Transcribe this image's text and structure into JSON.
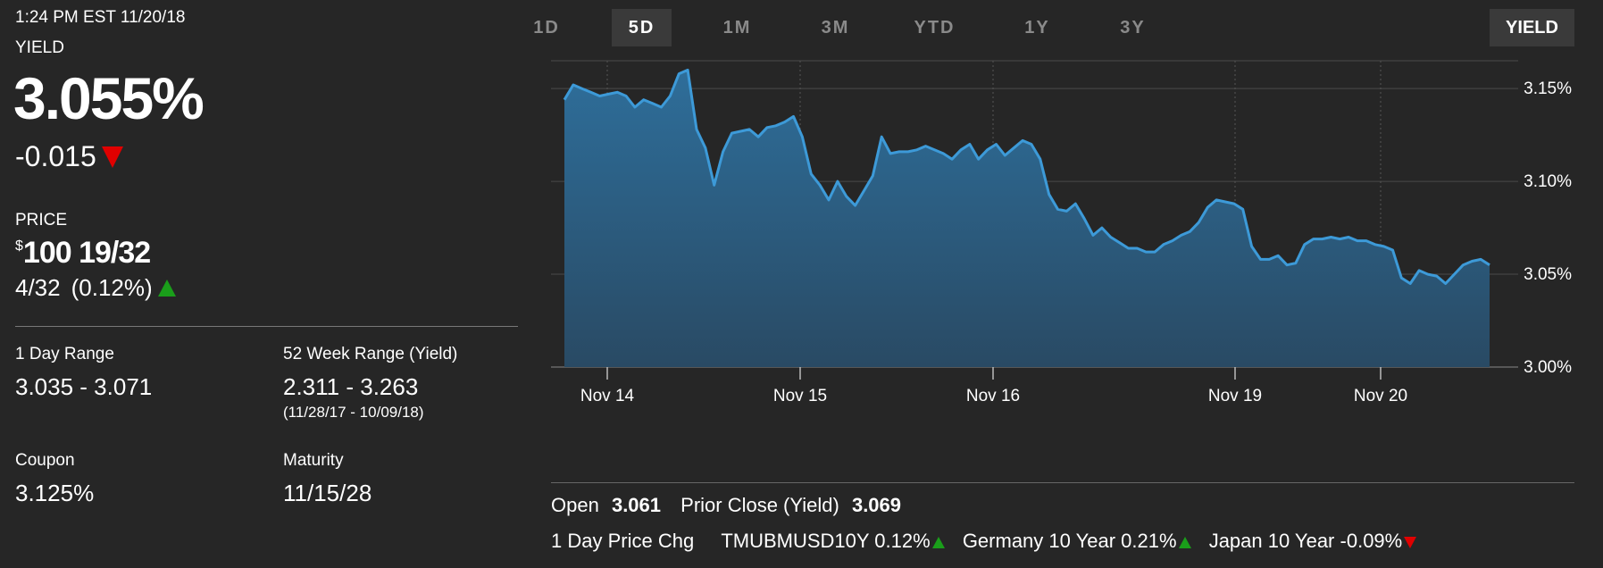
{
  "header": {
    "timestamp": "1:24 PM EST 11/20/18",
    "yield_label": "YIELD",
    "yield_value": "3.055%",
    "yield_change": "-0.015",
    "yield_direction": "down"
  },
  "price": {
    "label": "PRICE",
    "currency": "$",
    "value": "100 19/32",
    "change": "4/32",
    "change_pct": "(0.12%)",
    "direction": "up"
  },
  "stats": {
    "day_range_label": "1 Day Range",
    "day_range_value": "3.035 - 3.071",
    "week52_label": "52 Week Range (Yield)",
    "week52_value": "2.311 - 3.263",
    "week52_dates": "(11/28/17 - 10/09/18)",
    "coupon_label": "Coupon",
    "coupon_value": "3.125%",
    "maturity_label": "Maturity",
    "maturity_value": "11/15/28"
  },
  "tabs": {
    "items": [
      "1D",
      "5D",
      "1M",
      "3M",
      "YTD",
      "1Y",
      "3Y"
    ],
    "active": "5D",
    "yield_button": "YIELD"
  },
  "footer": {
    "open_label": "Open",
    "open_value": "3.061",
    "prior_close_label": "Prior Close (Yield)",
    "prior_close_value": "3.069",
    "day_price_chg_label": "1 Day Price Chg",
    "tickers": [
      {
        "name": "TMUBMUSD10Y",
        "value": "0.12%",
        "direction": "up"
      },
      {
        "name": "Germany 10 Year",
        "value": "0.21%",
        "direction": "up"
      },
      {
        "name": "Japan 10 Year",
        "value": "-0.09%",
        "direction": "down"
      }
    ]
  },
  "colors": {
    "background": "#262626",
    "line": "#3d9ad8",
    "fill_top": "#2e6e9a",
    "fill_bottom": "#294a64",
    "up": "#1a9e1a",
    "down": "#e00000"
  },
  "chart_data": {
    "type": "area",
    "title": "",
    "xlabel": "",
    "ylabel": "",
    "x_ticks": [
      "Nov 14",
      "Nov 15",
      "Nov 16",
      "Nov 19",
      "Nov 20"
    ],
    "y_ticks": [
      "3.00%",
      "3.05%",
      "3.10%",
      "3.15%"
    ],
    "ylim": [
      3.0,
      3.165
    ],
    "grid": true,
    "y_axis_side": "right",
    "series": [
      {
        "values": [
          3.144,
          3.152,
          3.15,
          3.148,
          3.146,
          3.147,
          3.148,
          3.146,
          3.14,
          3.144,
          3.142,
          3.14,
          3.146,
          3.158,
          3.16,
          3.128,
          3.118,
          3.098,
          3.116,
          3.126,
          3.127,
          3.128,
          3.124,
          3.129,
          3.13,
          3.132,
          3.135,
          3.124,
          3.104,
          3.098,
          3.09,
          3.1,
          3.092,
          3.087,
          3.095,
          3.103,
          3.124,
          3.115,
          3.116,
          3.116,
          3.117,
          3.119,
          3.117,
          3.115,
          3.112,
          3.117,
          3.12,
          3.112,
          3.117,
          3.12,
          3.114,
          3.118,
          3.122,
          3.12,
          3.112,
          3.093,
          3.085,
          3.084,
          3.088,
          3.08,
          3.071,
          3.075,
          3.07,
          3.067,
          3.064,
          3.064,
          3.062,
          3.062,
          3.066,
          3.068,
          3.071,
          3.073,
          3.078,
          3.086,
          3.09,
          3.089,
          3.088,
          3.085,
          3.065,
          3.058,
          3.058,
          3.06,
          3.055,
          3.056,
          3.066,
          3.069,
          3.069,
          3.07,
          3.069,
          3.07,
          3.068,
          3.068,
          3.066,
          3.065,
          3.063,
          3.048,
          3.045,
          3.052,
          3.05,
          3.049,
          3.045,
          3.05,
          3.055,
          3.057,
          3.058,
          3.055
        ]
      }
    ]
  }
}
